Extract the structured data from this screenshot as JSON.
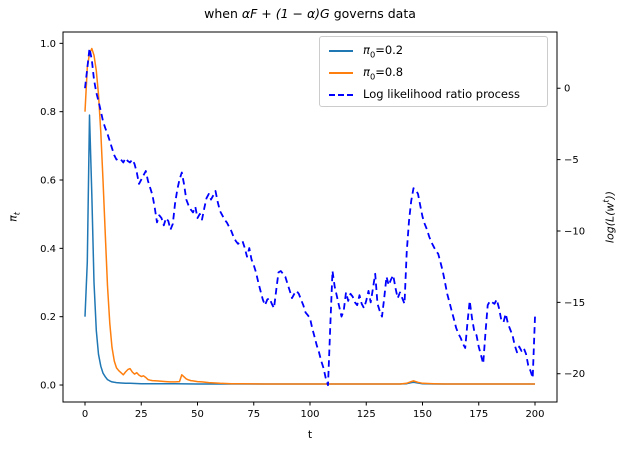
{
  "title": {
    "pre": "when ",
    "math": "αF + (1 − α)G",
    "post": " governs data"
  },
  "axes": {
    "x": {
      "label": "t",
      "ticks": [
        "0",
        "25",
        "50",
        "75",
        "100",
        "125",
        "150",
        "175",
        "200"
      ],
      "tick_values": [
        0,
        25,
        50,
        75,
        100,
        125,
        150,
        175,
        200
      ],
      "lim": [
        -9.78,
        209.78
      ]
    },
    "y_left": {
      "label_main": "π",
      "label_sub": "t",
      "ticks": [
        "0.0",
        "0.2",
        "0.4",
        "0.6",
        "0.8",
        "1.0"
      ],
      "tick_values": [
        0,
        0.2,
        0.4,
        0.6,
        0.8,
        1.0
      ],
      "lim": [
        -0.0497,
        1.0332
      ]
    },
    "y_right": {
      "label_pre": "log(L(w",
      "label_sup": "t",
      "label_post": "))",
      "ticks": [
        "0",
        "−5",
        "−10",
        "−15",
        "−20"
      ],
      "tick_values": [
        0,
        -5,
        -10,
        -15,
        -20
      ],
      "lim": [
        -21.98,
        3.94
      ]
    }
  },
  "legend": {
    "entries": [
      {
        "italic": "π",
        "sub": "0",
        "text": "=0.2",
        "color": "#1f77b4",
        "dash": false
      },
      {
        "italic": "π",
        "sub": "0",
        "text": "=0.8",
        "color": "#ff7f0e",
        "dash": false
      },
      {
        "italic": "",
        "sub": "",
        "text": "Log likelihood ratio process",
        "color": "#0000ff",
        "dash": true
      }
    ]
  },
  "chart_data": {
    "type": "line",
    "title": "when αF + (1 − α)G governs data",
    "xlabel": "t",
    "ylabel_left": "π_t",
    "ylabel_right": "log(L(w^t))",
    "xlim": [
      -9.78,
      209.78
    ],
    "ylim_left": [
      -0.0497,
      1.0332
    ],
    "ylim_right": [
      -21.98,
      3.94
    ],
    "grid": false,
    "legend_position": "upper right",
    "series": [
      {
        "name": "pi0=0.2",
        "axis": "left",
        "color": "#1f77b4",
        "width": 1.5,
        "dash": null,
        "points": [
          [
            0,
            0.2
          ],
          [
            1,
            0.36
          ],
          [
            2,
            0.79
          ],
          [
            3,
            0.56
          ],
          [
            4,
            0.3
          ],
          [
            5,
            0.16
          ],
          [
            6,
            0.09
          ],
          [
            7,
            0.055
          ],
          [
            8,
            0.035
          ],
          [
            9,
            0.024
          ],
          [
            10,
            0.016
          ],
          [
            11,
            0.012
          ],
          [
            12,
            0.009
          ],
          [
            13,
            0.008
          ],
          [
            14,
            0.007
          ],
          [
            16,
            0.006
          ],
          [
            18,
            0.005
          ],
          [
            20,
            0.005
          ],
          [
            25,
            0.004
          ],
          [
            30,
            0.004
          ],
          [
            40,
            0.004
          ],
          [
            50,
            0.003
          ],
          [
            60,
            0.003
          ],
          [
            80,
            0.003
          ],
          [
            100,
            0.003
          ],
          [
            120,
            0.003
          ],
          [
            140,
            0.003
          ],
          [
            143,
            0.004
          ],
          [
            145,
            0.007
          ],
          [
            146,
            0.008
          ],
          [
            148,
            0.006
          ],
          [
            150,
            0.004
          ],
          [
            155,
            0.003
          ],
          [
            170,
            0.003
          ],
          [
            185,
            0.003
          ],
          [
            200,
            0.003
          ]
        ]
      },
      {
        "name": "pi0=0.8",
        "axis": "left",
        "color": "#ff7f0e",
        "width": 1.5,
        "dash": null,
        "points": [
          [
            0,
            0.8
          ],
          [
            1,
            0.93
          ],
          [
            2,
            0.97
          ],
          [
            3,
            0.985
          ],
          [
            4,
            0.965
          ],
          [
            5,
            0.92
          ],
          [
            6,
            0.85
          ],
          [
            7,
            0.74
          ],
          [
            8,
            0.6
          ],
          [
            9,
            0.44
          ],
          [
            10,
            0.29
          ],
          [
            11,
            0.18
          ],
          [
            12,
            0.11
          ],
          [
            13,
            0.07
          ],
          [
            14,
            0.05
          ],
          [
            15,
            0.042
          ],
          [
            16,
            0.036
          ],
          [
            17,
            0.03
          ],
          [
            18,
            0.038
          ],
          [
            19,
            0.045
          ],
          [
            20,
            0.048
          ],
          [
            21,
            0.038
          ],
          [
            22,
            0.032
          ],
          [
            23,
            0.036
          ],
          [
            24,
            0.029
          ],
          [
            25,
            0.025
          ],
          [
            26,
            0.027
          ],
          [
            27,
            0.022
          ],
          [
            28,
            0.016
          ],
          [
            29,
            0.014
          ],
          [
            30,
            0.013
          ],
          [
            32,
            0.012
          ],
          [
            34,
            0.011
          ],
          [
            36,
            0.01
          ],
          [
            38,
            0.009
          ],
          [
            40,
            0.009
          ],
          [
            42,
            0.01
          ],
          [
            43,
            0.03
          ],
          [
            44,
            0.024
          ],
          [
            45,
            0.018
          ],
          [
            46,
            0.015
          ],
          [
            47,
            0.013
          ],
          [
            48,
            0.012
          ],
          [
            50,
            0.01
          ],
          [
            52,
            0.009
          ],
          [
            55,
            0.007
          ],
          [
            58,
            0.006
          ],
          [
            60,
            0.005
          ],
          [
            65,
            0.004
          ],
          [
            70,
            0.004
          ],
          [
            80,
            0.003
          ],
          [
            100,
            0.003
          ],
          [
            120,
            0.003
          ],
          [
            140,
            0.003
          ],
          [
            143,
            0.005
          ],
          [
            145,
            0.01
          ],
          [
            146,
            0.012
          ],
          [
            147,
            0.01
          ],
          [
            148,
            0.008
          ],
          [
            150,
            0.005
          ],
          [
            155,
            0.004
          ],
          [
            160,
            0.003
          ],
          [
            180,
            0.003
          ],
          [
            200,
            0.003
          ]
        ]
      },
      {
        "name": "log likelihood ratio process",
        "axis": "right",
        "color": "#0000ff",
        "width": 1.8,
        "dash": "6.5 4.2",
        "t_start": 0,
        "t_step": 1,
        "values": [
          0.0,
          1.4,
          2.8,
          2.0,
          0.6,
          -0.3,
          -0.9,
          -1.6,
          -2.3,
          -2.8,
          -3.2,
          -3.7,
          -4.2,
          -4.7,
          -5.0,
          -4.9,
          -5.0,
          -5.2,
          -4.9,
          -5.1,
          -5.2,
          -5.0,
          -5.3,
          -5.9,
          -6.7,
          -6.4,
          -6.1,
          -5.8,
          -6.5,
          -7.0,
          -7.5,
          -8.4,
          -9.4,
          -8.9,
          -9.1,
          -9.6,
          -9.1,
          -9.3,
          -9.9,
          -9.5,
          -8.1,
          -7.1,
          -6.4,
          -5.9,
          -6.7,
          -7.8,
          -8.2,
          -8.5,
          -8.7,
          -8.3,
          -9.1,
          -8.8,
          -9.2,
          -8.4,
          -7.7,
          -7.4,
          -7.8,
          -7.5,
          -7.2,
          -8.0,
          -8.6,
          -8.9,
          -9.2,
          -9.4,
          -9.7,
          -10.0,
          -10.4,
          -10.7,
          -10.9,
          -10.8,
          -10.7,
          -11.2,
          -11.8,
          -11.2,
          -12.0,
          -12.4,
          -12.9,
          -13.6,
          -14.2,
          -14.8,
          -15.2,
          -14.8,
          -14.7,
          -15.1,
          -15.4,
          -14.1,
          -12.9,
          -12.8,
          -13.0,
          -13.2,
          -13.7,
          -14.2,
          -14.7,
          -14.4,
          -14.2,
          -14.4,
          -14.8,
          -15.2,
          -15.7,
          -15.9,
          -16.1,
          -16.8,
          -17.4,
          -18.0,
          -18.5,
          -19.1,
          -19.6,
          -20.3,
          -20.8,
          -16.8,
          -12.8,
          -13.9,
          -14.6,
          -15.3,
          -16.0,
          -15.6,
          -14.3,
          -14.9,
          -14.4,
          -14.6,
          -15.0,
          -15.2,
          -14.5,
          -15.1,
          -15.4,
          -14.9,
          -14.2,
          -15.0,
          -14.0,
          -13.0,
          -15.1,
          -15.6,
          -16.0,
          -14.7,
          -13.2,
          -13.8,
          -13.4,
          -13.1,
          -14.0,
          -14.7,
          -14.3,
          -14.7,
          -15.1,
          -11.5,
          -9.3,
          -7.9,
          -7.0,
          -7.1,
          -7.4,
          -8.2,
          -9.0,
          -9.5,
          -9.9,
          -10.4,
          -10.8,
          -11.1,
          -11.4,
          -11.6,
          -12.2,
          -12.8,
          -13.6,
          -14.4,
          -15.0,
          -15.6,
          -16.2,
          -16.8,
          -17.2,
          -17.5,
          -17.9,
          -18.2,
          -16.4,
          -14.9,
          -16.1,
          -17.0,
          -17.3,
          -18.1,
          -18.7,
          -19.3,
          -17.1,
          -15.2,
          -14.9,
          -15.0,
          -15.1,
          -14.8,
          -15.4,
          -16.2,
          -16.4,
          -15.8,
          -16.5,
          -16.9,
          -17.3,
          -18.0,
          -18.5,
          -18.1,
          -18.4,
          -18.2,
          -18.6,
          -19.4,
          -19.8,
          -20.3,
          -16.0
        ]
      }
    ]
  }
}
